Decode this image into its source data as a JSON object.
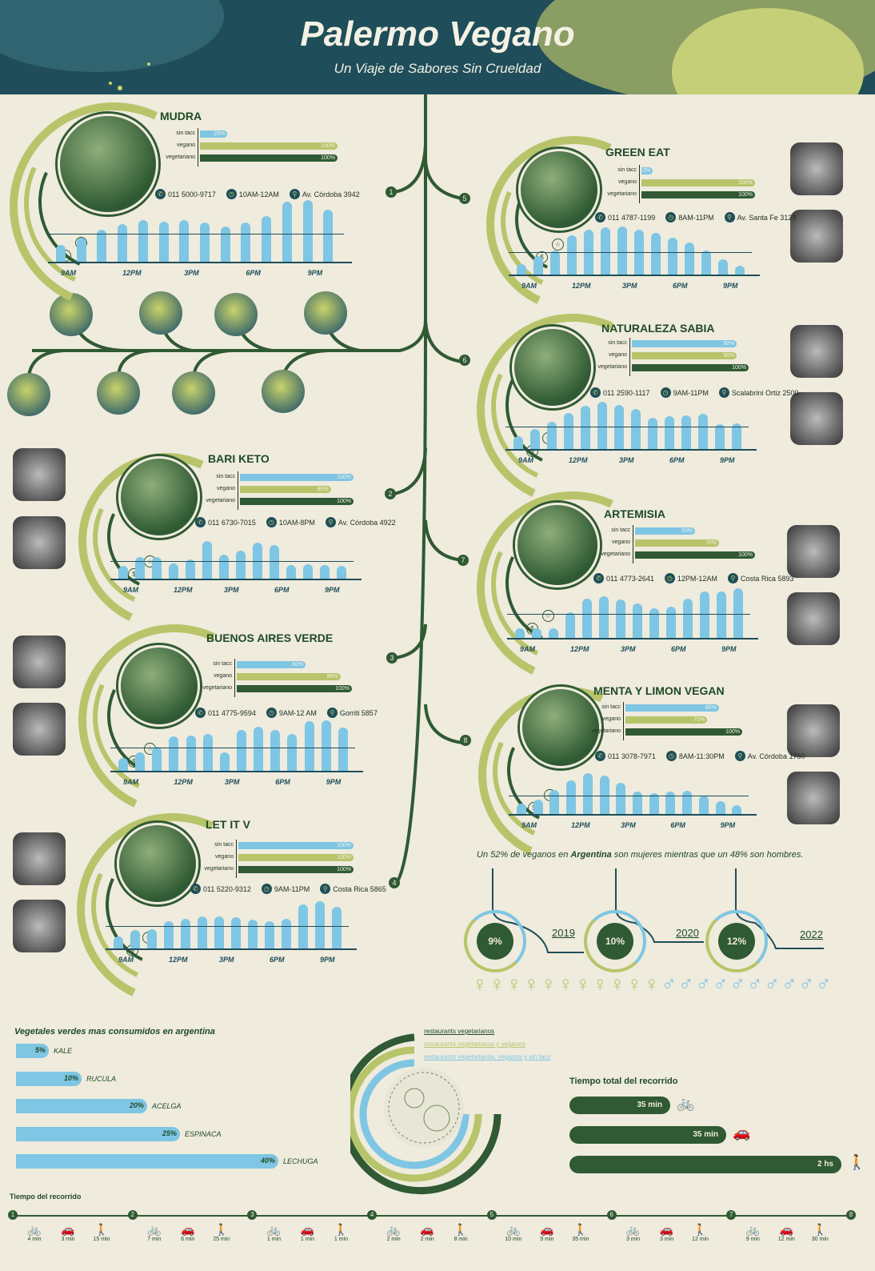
{
  "header": {
    "title": "Palermo Vegano",
    "subtitle": "Un Viaje de Sabores Sin Crueldad"
  },
  "restaurants": [
    {
      "name": "MUDRA",
      "num": "1",
      "bars": [
        {
          "label": "sin tacc",
          "value": "20%",
          "pct": 20,
          "color": "#7ec6e4"
        },
        {
          "label": "vegano",
          "value": "100%",
          "pct": 100,
          "color": "#b8c46a"
        },
        {
          "label": "vegetariano",
          "value": "100%",
          "pct": 100,
          "color": "#2f5a33"
        }
      ],
      "phone": "011 5000-9717",
      "hours": "10AM-12AM",
      "address": "Av. Córdoba 3942",
      "hist": [
        0.28,
        0.4,
        0.52,
        0.62,
        0.68,
        0.66,
        0.68,
        0.64,
        0.58,
        0.64,
        0.74,
        0.98,
        1.0,
        0.84
      ],
      "ticks": [
        "9AM",
        "12PM",
        "3PM",
        "6PM",
        "9PM"
      ]
    },
    {
      "name": "GREEN EAT",
      "num": "5",
      "bars": [
        {
          "label": "sin tacc",
          "value": "10%",
          "pct": 10,
          "color": "#7ec6e4"
        },
        {
          "label": "vegano",
          "value": "100%",
          "pct": 100,
          "color": "#b8c46a"
        },
        {
          "label": "vegetariano",
          "value": "100%",
          "pct": 100,
          "color": "#2f5a33"
        }
      ],
      "phone": "011 4787-1199",
      "hours": "8AM-11PM",
      "address": "Av. Santa Fe 3129",
      "hist": [
        0.22,
        0.38,
        0.5,
        0.8,
        0.92,
        0.96,
        0.98,
        0.92,
        0.86,
        0.76,
        0.66,
        0.5,
        0.32,
        0.2
      ],
      "ticks": [
        "9AM",
        "12PM",
        "3PM",
        "6PM",
        "9PM"
      ]
    },
    {
      "name": "NATURALEZA SABIA",
      "num": "6",
      "bars": [
        {
          "label": "sin tacc",
          "value": "90%",
          "pct": 90,
          "color": "#7ec6e4"
        },
        {
          "label": "vegano",
          "value": "90%",
          "pct": 90,
          "color": "#b8c46a"
        },
        {
          "label": "vegetariano",
          "value": "100%",
          "pct": 100,
          "color": "#2f5a33"
        }
      ],
      "phone": "011 2590-1117",
      "hours": "9AM-11PM",
      "address": "Scalabrini Ortiz 2500",
      "hist": [
        0.28,
        0.42,
        0.56,
        0.74,
        0.88,
        0.96,
        0.9,
        0.82,
        0.64,
        0.68,
        0.7,
        0.72,
        0.52,
        0.54
      ],
      "ticks": [
        "9AM",
        "12PM",
        "3PM",
        "6PM",
        "9PM"
      ]
    },
    {
      "name": "BARI KETO",
      "num": "2",
      "bars": [
        {
          "label": "sin tacc",
          "value": "100%",
          "pct": 100,
          "color": "#7ec6e4"
        },
        {
          "label": "vegano",
          "value": "80%",
          "pct": 80,
          "color": "#b8c46a"
        },
        {
          "label": "vegetariano",
          "value": "100%",
          "pct": 100,
          "color": "#2f5a33"
        }
      ],
      "phone": "011 6730-7015",
      "hours": "10AM-8PM",
      "address": "Av. Córdoba 4922",
      "hist": [
        0.34,
        0.56,
        0.56,
        0.4,
        0.5,
        0.96,
        0.62,
        0.72,
        0.92,
        0.86,
        0.36,
        0.38,
        0.36,
        0.34
      ],
      "ticks": [
        "9AM",
        "12PM",
        "3PM",
        "6PM",
        "9PM"
      ]
    },
    {
      "name": "ARTEMISIA",
      "num": "7",
      "bars": [
        {
          "label": "sin tacc",
          "value": "50%",
          "pct": 50,
          "color": "#7ec6e4"
        },
        {
          "label": "vegano",
          "value": "70%",
          "pct": 70,
          "color": "#b8c46a"
        },
        {
          "label": "vegetariano",
          "value": "100%",
          "pct": 100,
          "color": "#2f5a33"
        }
      ],
      "phone": "011 4773-2641",
      "hours": "12PM-12AM",
      "address": "Costa Rica 5893",
      "hist": [
        0.2,
        0.2,
        0.2,
        0.5,
        0.76,
        0.8,
        0.74,
        0.66,
        0.58,
        0.6,
        0.76,
        0.9,
        0.9,
        0.96
      ],
      "ticks": [
        "9AM",
        "12PM",
        "3PM",
        "6PM",
        "9PM"
      ]
    },
    {
      "name": "BUENOS AIRES VERDE",
      "num": "3",
      "bars": [
        {
          "label": "sin tacc",
          "value": "60%",
          "pct": 60,
          "color": "#7ec6e4"
        },
        {
          "label": "vegano",
          "value": "90%",
          "pct": 90,
          "color": "#b8c46a"
        },
        {
          "label": "vegetariano",
          "value": "100%",
          "pct": 100,
          "color": "#2f5a33"
        }
      ],
      "phone": "011 4775-9594",
      "hours": "9AM-12 AM",
      "address": "Gorriti 5857",
      "hist": [
        0.26,
        0.38,
        0.48,
        0.68,
        0.7,
        0.74,
        0.38,
        0.82,
        0.88,
        0.82,
        0.74,
        0.98,
        1.0,
        0.86
      ],
      "ticks": [
        "9AM",
        "12PM",
        "3PM",
        "6PM",
        "9PM"
      ]
    },
    {
      "name": "MENTA Y LIMON VEGAN",
      "num": "8",
      "bars": [
        {
          "label": "sin tacc",
          "value": "80%",
          "pct": 80,
          "color": "#7ec6e4"
        },
        {
          "label": "vegano",
          "value": "70%",
          "pct": 70,
          "color": "#b8c46a"
        },
        {
          "label": "vegetariano",
          "value": "100%",
          "pct": 100,
          "color": "#2f5a33"
        }
      ],
      "phone": "011 3078-7971",
      "hours": "8AM-11:30PM",
      "address": "Av. Córdoba 1750",
      "hist": [
        0.26,
        0.36,
        0.6,
        0.82,
        1.0,
        0.94,
        0.76,
        0.56,
        0.52,
        0.56,
        0.58,
        0.46,
        0.32,
        0.24
      ],
      "ticks": [
        "9AM",
        "12PM",
        "3PM",
        "6PM",
        "9PM"
      ]
    },
    {
      "name": "LET IT V",
      "num": "4",
      "bars": [
        {
          "label": "sin tacc",
          "value": "100%",
          "pct": 100,
          "color": "#7ec6e4"
        },
        {
          "label": "vegano",
          "value": "100%",
          "pct": 100,
          "color": "#b8c46a"
        },
        {
          "label": "vegetariano",
          "value": "100%",
          "pct": 100,
          "color": "#2f5a33"
        }
      ],
      "phone": "011 5220-9312",
      "hours": "9AM-11PM",
      "address": "Costa Rica 5865",
      "hist": [
        0.26,
        0.38,
        0.4,
        0.56,
        0.62,
        0.66,
        0.66,
        0.64,
        0.6,
        0.56,
        0.62,
        0.9,
        0.96,
        0.86
      ],
      "ticks": [
        "9AM",
        "12PM",
        "3PM",
        "6PM",
        "9PM"
      ]
    }
  ],
  "stats": {
    "text_before": "Un 52% de veganos en ",
    "text_bold": "Argentina",
    "text_after": " son mujeres mientras que un 48% son hombres.",
    "rings": [
      {
        "value": "9%",
        "year": "2019",
        "share": 0.09
      },
      {
        "value": "10%",
        "year": "2020",
        "share": 0.1
      },
      {
        "value": "12%",
        "year": "2022",
        "share": 0.12
      }
    ],
    "women_share": 0.52
  },
  "vegetables": {
    "title": "Vegetales verdes mas consumidos en argentina",
    "items": [
      {
        "pct": "5%",
        "share": 5,
        "name": "KALE"
      },
      {
        "pct": "10%",
        "share": 10,
        "name": "RUCULA"
      },
      {
        "pct": "20%",
        "share": 20,
        "name": "ACELGA"
      },
      {
        "pct": "25%",
        "share": 25,
        "name": "ESPINACA"
      },
      {
        "pct": "40%",
        "share": 40,
        "name": "LECHUGA"
      }
    ]
  },
  "legend": [
    {
      "label": "restaurants vegetarianos",
      "color": "#2f5a33"
    },
    {
      "label": "restaurants vegetarianos y veganos",
      "color": "#b8c46a"
    },
    {
      "label": "restaurants vegetarianos, veganos y sin tacc",
      "color": "#7ec6e4"
    }
  ],
  "total_time": {
    "title": "Tiempo total del recorrido",
    "items": [
      {
        "value": "35 min",
        "icon": "bicycle-icon",
        "glyph": "🚲"
      },
      {
        "value": "35 min",
        "icon": "car-icon",
        "glyph": "🚗"
      },
      {
        "value": "2 hs",
        "icon": "walking-icon",
        "glyph": "🚶"
      }
    ]
  },
  "route": {
    "title": "Tiempo del recorrido",
    "stops": [
      "1",
      "2",
      "3",
      "4",
      "5",
      "6",
      "7",
      "8"
    ],
    "segments": [
      [
        "4 min",
        "3 min",
        "15 min"
      ],
      [
        "7 min",
        "6 min",
        "25 min"
      ],
      [
        "1 min",
        "1 min",
        "1 min"
      ],
      [
        "2 min",
        "2 min",
        "8 min"
      ],
      [
        "10 min",
        "9 min",
        "35 min"
      ],
      [
        "3 min",
        "3 min",
        "12 min"
      ],
      [
        "9 min",
        "12 min",
        "30 min"
      ]
    ]
  }
}
